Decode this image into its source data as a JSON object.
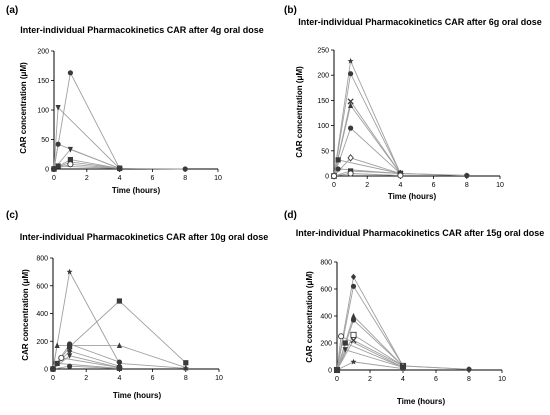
{
  "chart_data": [
    {
      "type": "line",
      "panel_label": "(a)",
      "title": "Inter-individual Pharmacokinetics CAR after 4g oral dose",
      "xlabel": "Time (hours)",
      "ylabel": "CAR concentration (μM)",
      "xlim": [
        0,
        10
      ],
      "ylim": [
        0,
        200
      ],
      "xticks": [
        "0",
        "2",
        "4",
        "6",
        "8",
        "10"
      ],
      "yticks": [
        "0",
        "50",
        "100",
        "150",
        "200"
      ],
      "grid": false,
      "series": [
        {
          "marker": "circle",
          "points": [
            [
              0,
              0
            ],
            [
              1,
              163
            ],
            [
              4,
              1
            ],
            [
              8,
              0
            ]
          ]
        },
        {
          "marker": "triangle-down",
          "points": [
            [
              0,
              0
            ],
            [
              0.25,
              104
            ],
            [
              4,
              1
            ]
          ]
        },
        {
          "marker": "triangle-down",
          "points": [
            [
              0,
              0
            ],
            [
              1,
              33
            ],
            [
              4,
              1
            ]
          ]
        },
        {
          "marker": "circle",
          "points": [
            [
              0,
              0
            ],
            [
              0.25,
              42
            ],
            [
              4,
              1
            ]
          ]
        },
        {
          "marker": "square",
          "points": [
            [
              0,
              0
            ],
            [
              1,
              16
            ],
            [
              4,
              1
            ]
          ]
        },
        {
          "marker": "diamond",
          "points": [
            [
              0,
              0
            ],
            [
              1,
              12
            ],
            [
              4,
              1
            ]
          ]
        },
        {
          "marker": "circle-open",
          "points": [
            [
              0,
              0
            ],
            [
              1,
              8
            ],
            [
              4,
              1
            ]
          ]
        },
        {
          "marker": "square",
          "points": [
            [
              0,
              0
            ],
            [
              0.25,
              5
            ],
            [
              4,
              1
            ]
          ]
        }
      ]
    },
    {
      "type": "line",
      "panel_label": "(b)",
      "title": "Inter-individual Pharmacokinetics CAR after 6g oral dose",
      "xlabel": "Time (hours)",
      "ylabel": "CAR concentration (μM)",
      "xlim": [
        0,
        10
      ],
      "ylim": [
        0,
        250
      ],
      "xticks": [
        "0",
        "2",
        "4",
        "6",
        "8",
        "10"
      ],
      "yticks": [
        "0",
        "50",
        "100",
        "150",
        "200",
        "250"
      ],
      "grid": false,
      "series": [
        {
          "marker": "star",
          "points": [
            [
              0,
              0
            ],
            [
              1,
              228
            ],
            [
              4,
              5
            ],
            [
              8,
              1
            ]
          ]
        },
        {
          "marker": "circle",
          "points": [
            [
              0,
              0
            ],
            [
              1,
              203
            ],
            [
              4,
              5
            ],
            [
              8,
              1
            ]
          ]
        },
        {
          "marker": "x",
          "points": [
            [
              0,
              0
            ],
            [
              1,
              148
            ],
            [
              4,
              5
            ]
          ]
        },
        {
          "marker": "triangle",
          "points": [
            [
              0,
              0
            ],
            [
              1,
              140
            ],
            [
              4,
              5
            ]
          ]
        },
        {
          "marker": "circle",
          "points": [
            [
              0,
              0
            ],
            [
              1,
              95
            ],
            [
              4,
              5
            ]
          ]
        },
        {
          "marker": "diamond-open",
          "points": [
            [
              0,
              0
            ],
            [
              1,
              36
            ],
            [
              4,
              5
            ]
          ]
        },
        {
          "marker": "square",
          "points": [
            [
              0,
              0
            ],
            [
              0.25,
              32
            ],
            [
              4,
              5
            ]
          ]
        },
        {
          "marker": "circle",
          "points": [
            [
              0,
              0
            ],
            [
              0.25,
              14
            ],
            [
              4,
              5
            ]
          ]
        },
        {
          "marker": "square",
          "points": [
            [
              0,
              0
            ],
            [
              1,
              10
            ],
            [
              4,
              5
            ]
          ]
        },
        {
          "marker": "circle-open",
          "points": [
            [
              0,
              0
            ],
            [
              1,
              5
            ],
            [
              4,
              1
            ]
          ]
        }
      ]
    },
    {
      "type": "line",
      "panel_label": "(c)",
      "title": "Inter-individual Pharmacokinetics CAR after 10g oral dose",
      "xlabel": "Time (hours)",
      "ylabel": "CAR concentration (μM)",
      "xlim": [
        0,
        10
      ],
      "ylim": [
        0,
        800
      ],
      "xticks": [
        "0",
        "2",
        "4",
        "6",
        "8",
        "10"
      ],
      "yticks": [
        "0",
        "200",
        "400",
        "600",
        "800"
      ],
      "grid": false,
      "series": [
        {
          "marker": "star",
          "points": [
            [
              0,
              0
            ],
            [
              1,
              700
            ],
            [
              4,
              40
            ],
            [
              8,
              5
            ]
          ]
        },
        {
          "marker": "square",
          "points": [
            [
              0,
              0
            ],
            [
              1,
              160
            ],
            [
              4,
              490
            ],
            [
              8,
              45
            ]
          ]
        },
        {
          "marker": "triangle",
          "points": [
            [
              0,
              0
            ],
            [
              0.25,
              170
            ],
            [
              4,
              170
            ],
            [
              8,
              10
            ]
          ]
        },
        {
          "marker": "circle",
          "points": [
            [
              0,
              0
            ],
            [
              1,
              180
            ],
            [
              4,
              50
            ]
          ]
        },
        {
          "marker": "circle-open",
          "points": [
            [
              0,
              0
            ],
            [
              0.5,
              80
            ],
            [
              4,
              10
            ]
          ]
        },
        {
          "marker": "diamond",
          "points": [
            [
              0,
              0
            ],
            [
              1,
              130
            ],
            [
              4,
              20
            ]
          ]
        },
        {
          "marker": "triangle-down",
          "points": [
            [
              0,
              0
            ],
            [
              1,
              95
            ],
            [
              4,
              10
            ]
          ]
        },
        {
          "marker": "square",
          "points": [
            [
              0,
              0
            ],
            [
              0.25,
              40
            ],
            [
              4,
              5
            ]
          ]
        },
        {
          "marker": "circle",
          "points": [
            [
              0,
              0
            ],
            [
              1,
              20
            ],
            [
              4,
              3
            ]
          ]
        }
      ]
    },
    {
      "type": "line",
      "panel_label": "(d)",
      "title": "Inter-individual Pharmacokinetics CAR after 15g oral dose",
      "xlabel": "Time (hours)",
      "ylabel": "CAR concentration (μM)",
      "xlim": [
        0,
        10
      ],
      "ylim": [
        0,
        800
      ],
      "xticks": [
        "0",
        "2",
        "4",
        "6",
        "8",
        "10"
      ],
      "yticks": [
        "0",
        "200",
        "400",
        "600",
        "800"
      ],
      "grid": false,
      "series": [
        {
          "marker": "diamond",
          "points": [
            [
              0,
              0
            ],
            [
              1,
              690
            ],
            [
              4,
              30
            ],
            [
              8,
              5
            ]
          ]
        },
        {
          "marker": "circle",
          "points": [
            [
              0,
              0
            ],
            [
              1,
              620
            ],
            [
              4,
              30
            ],
            [
              8,
              5
            ]
          ]
        },
        {
          "marker": "triangle",
          "points": [
            [
              0,
              0
            ],
            [
              1,
              400
            ],
            [
              4,
              30
            ]
          ]
        },
        {
          "marker": "circle",
          "points": [
            [
              0,
              0
            ],
            [
              1,
              370
            ],
            [
              4,
              30
            ]
          ]
        },
        {
          "marker": "square-open",
          "points": [
            [
              0,
              0
            ],
            [
              1,
              260
            ],
            [
              4,
              30
            ]
          ]
        },
        {
          "marker": "x",
          "points": [
            [
              0,
              0
            ],
            [
              1,
              220
            ],
            [
              4,
              30
            ]
          ]
        },
        {
          "marker": "circle-open",
          "points": [
            [
              0,
              0
            ],
            [
              0.25,
              250
            ],
            [
              4,
              20
            ]
          ]
        },
        {
          "marker": "square",
          "points": [
            [
              0,
              0
            ],
            [
              0.5,
              200
            ],
            [
              4,
              20
            ]
          ]
        },
        {
          "marker": "triangle-down",
          "points": [
            [
              0,
              0
            ],
            [
              0.5,
              150
            ],
            [
              4,
              20
            ]
          ]
        },
        {
          "marker": "star",
          "points": [
            [
              0,
              0
            ],
            [
              1,
              60
            ],
            [
              4,
              10
            ]
          ]
        }
      ]
    }
  ]
}
